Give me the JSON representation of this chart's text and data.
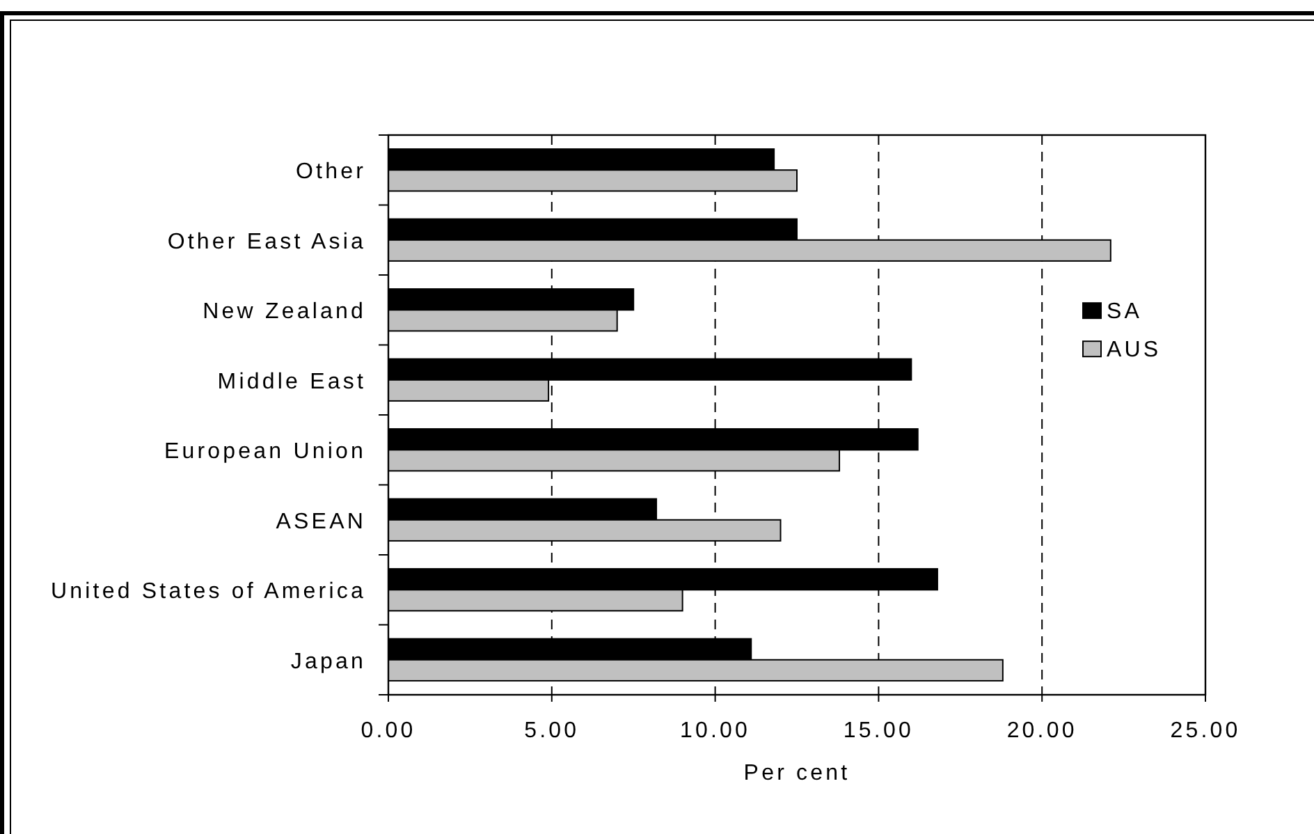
{
  "chart_data": {
    "type": "bar",
    "orientation": "horizontal",
    "categories": [
      "Other",
      "Other East Asia",
      "New Zealand",
      "Middle East",
      "European Union",
      "ASEAN",
      "United States of America",
      "Japan"
    ],
    "series": [
      {
        "name": "SA",
        "color": "#000000",
        "values": [
          11.8,
          12.5,
          7.5,
          16.0,
          16.2,
          8.2,
          16.8,
          11.1
        ]
      },
      {
        "name": "AUS",
        "color": "#c0c0c0",
        "values": [
          12.5,
          22.1,
          7.0,
          4.9,
          13.8,
          12.0,
          9.0,
          18.8
        ]
      }
    ],
    "xlabel": "Per cent",
    "xlim": [
      0,
      25
    ],
    "xticks": [
      {
        "value": 0,
        "label": "0.00"
      },
      {
        "value": 5,
        "label": "5.00"
      },
      {
        "value": 10,
        "label": "10.00"
      },
      {
        "value": 15,
        "label": "15.00"
      },
      {
        "value": 20,
        "label": "20.00"
      },
      {
        "value": 25,
        "label": "25.00"
      }
    ],
    "grid": "x",
    "legend": "right"
  }
}
